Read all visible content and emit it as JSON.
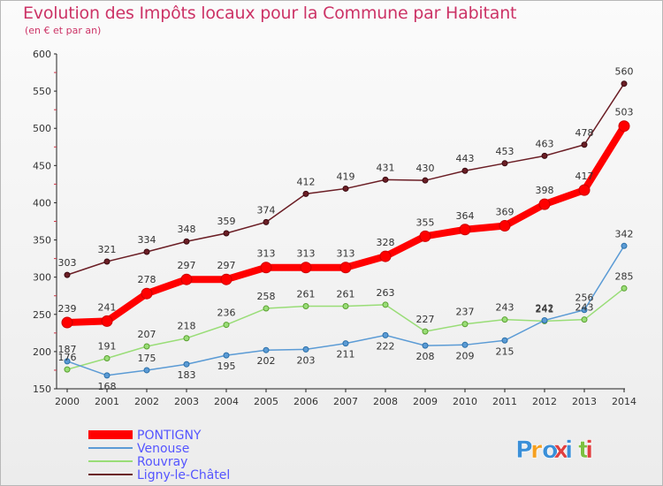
{
  "chart_data": {
    "type": "line",
    "title": "Evolution des Impôts locaux pour la Commune par Habitant",
    "subtitle": "(en € et par an)",
    "x": [
      "2000",
      "2001",
      "2002",
      "2003",
      "2004",
      "2005",
      "2006",
      "2007",
      "2008",
      "2009",
      "2010",
      "2011",
      "2012",
      "2013",
      "2014"
    ],
    "ylim": [
      150,
      600
    ],
    "yticks": [
      150,
      200,
      250,
      300,
      350,
      400,
      450,
      500,
      550,
      600
    ],
    "grid": false,
    "legend_position": "bottom-left",
    "series": [
      {
        "name": "Ligny-le-Châtel",
        "color": "#6b1e25",
        "values": [
          303,
          321,
          334,
          348,
          359,
          374,
          412,
          419,
          431,
          430,
          443,
          453,
          463,
          478,
          560
        ]
      },
      {
        "name": "Rouvray",
        "color": "#99dd77",
        "values": [
          176,
          191,
          207,
          218,
          236,
          258,
          261,
          261,
          263,
          227,
          237,
          243,
          241,
          243,
          285
        ]
      },
      {
        "name": "Venouse",
        "color": "#5b9bd5",
        "values": [
          187,
          168,
          175,
          183,
          195,
          202,
          203,
          211,
          222,
          208,
          209,
          215,
          242,
          256,
          342
        ]
      },
      {
        "name": "PONTIGNY",
        "color": "#ff0000",
        "values": [
          239,
          241,
          278,
          297,
          297,
          313,
          313,
          313,
          328,
          355,
          364,
          369,
          398,
          417,
          503
        ]
      }
    ],
    "legend_order": [
      "PONTIGNY",
      "Venouse",
      "Rouvray",
      "Ligny-le-Châtel"
    ],
    "legend_text_colors": {
      "PONTIGNY": "#5555ff",
      "Venouse": "#5555ff",
      "Rouvray": "#5555ff",
      "Ligny-le-Châtel": "#5555ff"
    }
  },
  "logo": {
    "text": "Proxiti",
    "colors": [
      "#3a8fd8",
      "#f5a020",
      "#3a8fd8",
      "#e04040",
      "#3a8fd8",
      "#7cc040",
      "#e04040"
    ]
  }
}
